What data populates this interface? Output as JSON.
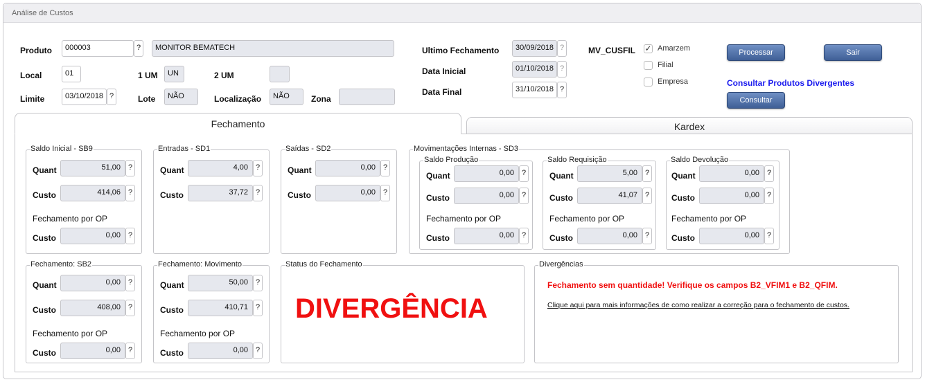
{
  "window": {
    "title": "Análise de Custos"
  },
  "header": {
    "produto": {
      "label": "Produto",
      "value": "000003",
      "description": "MONITOR BEMATECH"
    },
    "local": {
      "label": "Local",
      "value": "01"
    },
    "um1": {
      "label": "1 UM",
      "value": "UN"
    },
    "um2": {
      "label": "2 UM",
      "value": ""
    },
    "limite": {
      "label": "Limite",
      "value": "03/10/2018"
    },
    "lote": {
      "label": "Lote",
      "value": "NÃO"
    },
    "localizacao": {
      "label": "Localização",
      "value": "NÃO"
    },
    "zona": {
      "label": "Zona",
      "value": ""
    },
    "ultimo_fechamento": {
      "label": "Ultimo Fechamento",
      "value": "30/09/2018"
    },
    "data_inicial": {
      "label": "Data Inicial",
      "value": "01/10/2018"
    },
    "data_final": {
      "label": "Data Final",
      "value": "31/10/2018"
    },
    "help": "?",
    "mv_cusfil": {
      "label": "MV_CUSFIL",
      "options": [
        {
          "label": "Amarzem",
          "checked": true
        },
        {
          "label": "Filial",
          "checked": false
        },
        {
          "label": "Empresa",
          "checked": false
        }
      ]
    },
    "processar": "Processar",
    "sair": "Sair",
    "consultar_link": "Consultar Produtos Divergentes",
    "consultar": "Consultar"
  },
  "tabs": [
    {
      "label": "Fechamento",
      "active": true
    },
    {
      "label": "Kardex",
      "active": false
    }
  ],
  "labels": {
    "quant": "Quant",
    "custo": "Custo",
    "fech_op": "Fechamento por OP"
  },
  "groups": {
    "saldo_inicial": {
      "title": "Saldo Inicial - SB9",
      "quant": "51,00",
      "custo": "414,06",
      "custo_op": "0,00"
    },
    "entradas": {
      "title": "Entradas - SD1",
      "quant": "4,00",
      "custo": "37,72"
    },
    "saidas": {
      "title": "Saídas - SD2",
      "quant": "0,00",
      "custo": "0,00"
    },
    "mov_internas": {
      "title": "Movimentações Internas - SD3"
    },
    "saldo_producao": {
      "title": "Saldo Produção",
      "quant": "0,00",
      "custo": "0,00",
      "custo_op": "0,00"
    },
    "saldo_requisicao": {
      "title": "Saldo Requisição",
      "quant": "5,00",
      "custo": "41,07",
      "custo_op": "0,00"
    },
    "saldo_devolucao": {
      "title": "Saldo Devolução",
      "quant": "0,00",
      "custo": "0,00",
      "custo_op": "0,00"
    },
    "fech_sb2": {
      "title": "Fechamento: SB2",
      "quant": "0,00",
      "custo": "408,00",
      "custo_op": "0,00"
    },
    "fech_mov": {
      "title": "Fechamento: Movimento",
      "quant": "50,00",
      "custo": "410,71",
      "custo_op": "0,00"
    },
    "status": {
      "title": "Status do Fechamento",
      "value": "DIVERGÊNCIA"
    },
    "divergencias": {
      "title": "Divergências",
      "message": "Fechamento sem quantidade! Verifique os campos B2_VFIM1 e B2_QFIM.",
      "help_link": "Clique aqui para mais informações de como realizar a correção para o fechamento de custos."
    }
  },
  "colors": {
    "error": "#f01010",
    "link": "#1a1aee",
    "button": "#4f6fa6"
  }
}
